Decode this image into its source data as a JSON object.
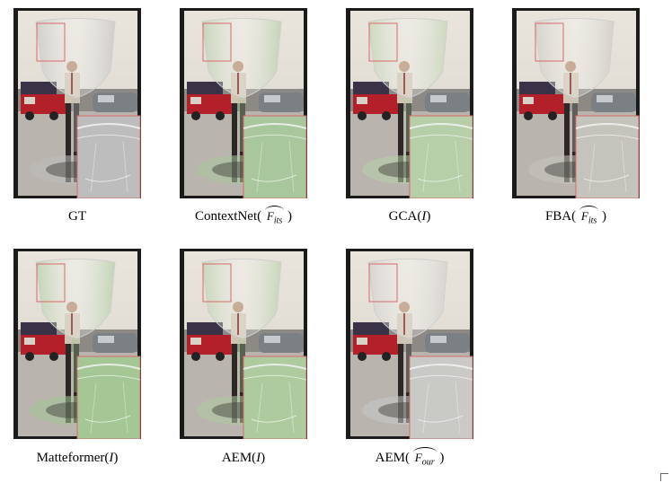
{
  "figure": {
    "panels": [
      {
        "method": "GT",
        "input": "",
        "hat_base": "",
        "hat_sub": "",
        "tint": "#bdbdbd"
      },
      {
        "method": "ContextNet(",
        "input": "",
        "hat_base": "F",
        "hat_sub": "its",
        "close": ")",
        "tint": "#a9c79c"
      },
      {
        "method": "GCA(",
        "input": "I",
        "hat_base": "",
        "hat_sub": "",
        "close": ")",
        "tint": "#b6cfa8"
      },
      {
        "method": "FBA(",
        "input": "",
        "hat_base": "F",
        "hat_sub": "its",
        "close": ")",
        "tint": "#c4c4bd"
      },
      {
        "method": "Matteformer(",
        "input": "I",
        "hat_base": "",
        "hat_sub": "",
        "close": ")",
        "tint": "#a4c795"
      },
      {
        "method": "AEM(",
        "input": "I",
        "hat_base": "",
        "hat_sub": "",
        "close": ")",
        "tint": "#aecb9f"
      },
      {
        "method": "AEM(",
        "input": "",
        "hat_base": "F",
        "hat_sub": "our",
        "close": ")",
        "tint": "#c9c9c6"
      }
    ]
  }
}
